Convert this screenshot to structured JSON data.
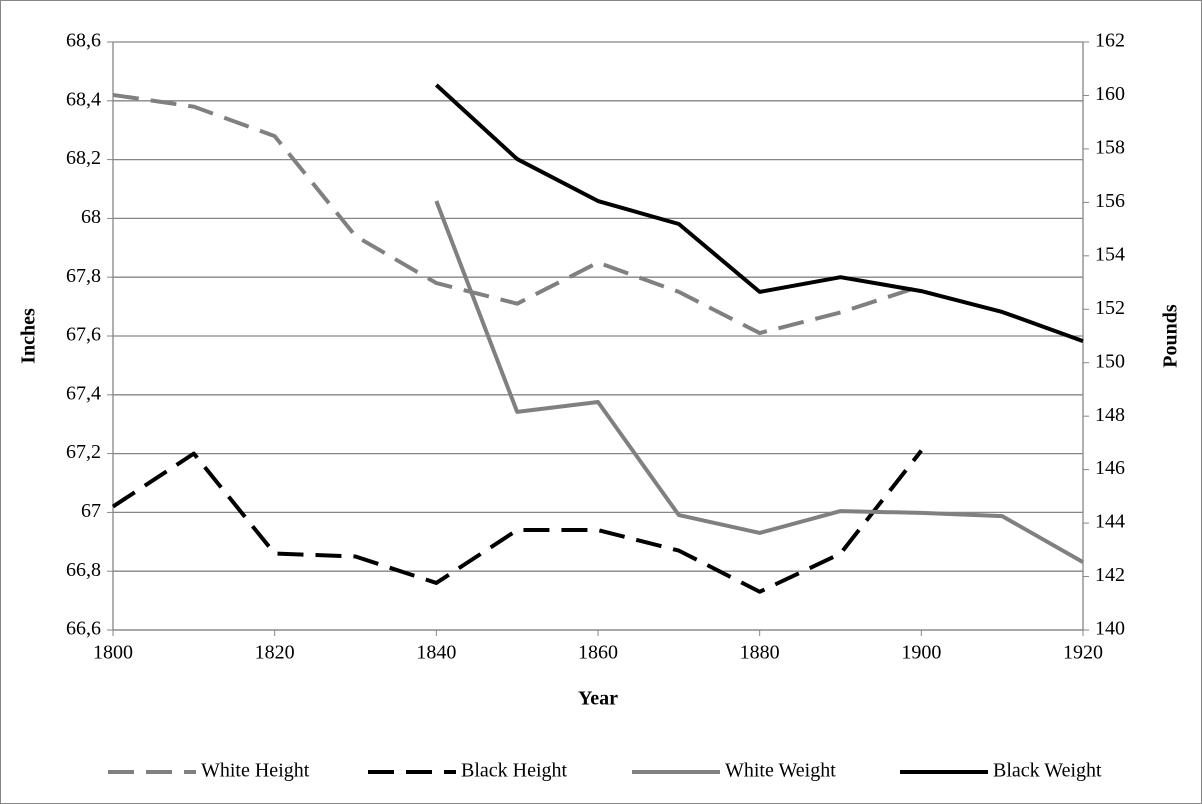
{
  "chart_data": {
    "type": "line",
    "x_label": "Year",
    "y_label": "Inches",
    "y2_label": "Pounds",
    "x": [
      1800,
      1810,
      1820,
      1830,
      1840,
      1850,
      1860,
      1870,
      1880,
      1890,
      1900,
      1910,
      1920
    ],
    "xlim": [
      1800,
      1920
    ],
    "xticks": [
      1800,
      1820,
      1840,
      1860,
      1880,
      1900,
      1920
    ],
    "ylim": [
      66.6,
      68.6
    ],
    "yticks": [
      {
        "value": 66.6,
        "label": "66,6"
      },
      {
        "value": 66.8,
        "label": "66,8"
      },
      67,
      {
        "value": 67.2,
        "label": "67,2"
      },
      {
        "value": 67.4,
        "label": "67,4"
      },
      {
        "value": 67.6,
        "label": "67,6"
      },
      {
        "value": 67.8,
        "label": "67,8"
      },
      68,
      {
        "value": 68.2,
        "label": "68,2"
      },
      {
        "value": 68.4,
        "label": "68,4"
      },
      {
        "value": 68.6,
        "label": "68,6"
      }
    ],
    "y2lim": [
      140,
      162
    ],
    "y2ticks": [
      140,
      142,
      144,
      146,
      148,
      150,
      152,
      154,
      156,
      158,
      160,
      162
    ],
    "grid": true,
    "legend": "bottom",
    "series": [
      {
        "name": "White Height",
        "color": "#808080",
        "dash": "dashed",
        "values": [
          68.42,
          68.38,
          68.28,
          67.94,
          67.78,
          67.71,
          67.85,
          67.75,
          67.61,
          67.68,
          67.77,
          null,
          null
        ]
      },
      {
        "name": "Black Height",
        "color": "#000000",
        "dash": "dashed",
        "values": [
          67.02,
          67.2,
          66.86,
          66.85,
          66.76,
          66.94,
          66.94,
          66.87,
          66.73,
          66.86,
          67.21,
          null,
          null
        ]
      },
      {
        "name": "White Weight",
        "color": "#808080",
        "dash": "solid",
        "axis": "y2",
        "values": [
          null,
          null,
          null,
          null,
          156.05,
          148.16,
          148.53,
          144.3,
          143.63,
          144.45,
          144.38,
          144.26,
          142.54
        ]
      },
      {
        "name": "Black Weight",
        "color": "#000000",
        "dash": "solid",
        "axis": "y2",
        "values": [
          null,
          null,
          null,
          null,
          160.39,
          157.62,
          156.05,
          155.19,
          152.65,
          153.2,
          152.68,
          151.9,
          150.81
        ]
      }
    ]
  }
}
